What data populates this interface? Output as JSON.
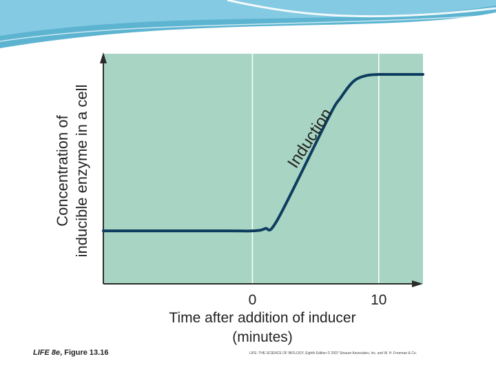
{
  "colors": {
    "plot_background": "#a8d5c3",
    "curve": "#0e3c5e",
    "axis": "#2b2b2b",
    "vline": "#ffffff",
    "header": "#3fa7c9"
  },
  "chart_data": {
    "type": "line",
    "title": "",
    "xlabel": [
      "Time after addition of inducer",
      "(minutes)"
    ],
    "ylabel": [
      "Concentration of",
      "inducible enzyme in a cell"
    ],
    "xlim": [
      -11.8,
      13.5
    ],
    "ylim": [
      0,
      1
    ],
    "x_ticks": [
      0,
      10
    ],
    "x_tick_labels": [
      "0",
      "10"
    ],
    "vertical_lines": [
      0,
      10
    ],
    "series": [
      {
        "name": "Inducible enzyme concentration",
        "x": [
          -11.8,
          -2,
          0,
          1,
          2,
          6,
          7,
          8,
          9,
          10,
          11,
          13.5
        ],
        "y": [
          0.23,
          0.23,
          0.23,
          0.24,
          0.28,
          0.72,
          0.81,
          0.88,
          0.905,
          0.91,
          0.91,
          0.91
        ]
      }
    ],
    "annotations": [
      {
        "text": "Induction",
        "x": 4.9,
        "y": 0.62
      }
    ]
  },
  "footer": {
    "figure_label_bold": "LIFE 8e",
    "figure_label_rest": ", Figure 13.16",
    "credit": "LIFE: THE SCIENCE OF BIOLOGY, Eighth Edition © 2007 Sinauer Associates, Inc. and W. H. Freeman & Co."
  }
}
